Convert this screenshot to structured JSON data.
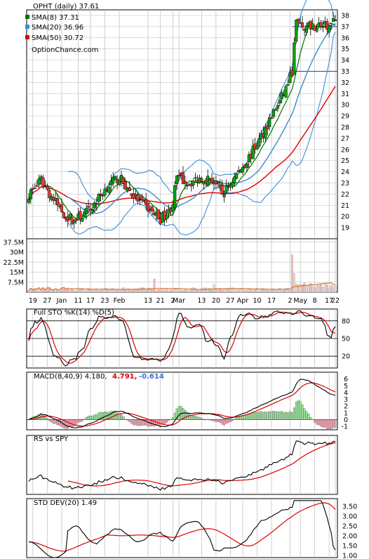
{
  "chart_data": [
    {
      "type": "candlestick",
      "panel": "price",
      "title": "OPHT (daily) 37.61",
      "watermark": "OptionChance.com",
      "legend": [
        {
          "label": "SMA(8) 37.31",
          "color": "#007700"
        },
        {
          "label": "SMA(20) 36.96",
          "color": "#3a8fd6"
        },
        {
          "label": "SMA(50) 30.72",
          "color": "#dd0000"
        }
      ],
      "legend_placement": "top-left",
      "ylim": [
        18,
        38.5
      ],
      "y_ticks": [
        "38",
        "37",
        "36",
        "35",
        "34",
        "33",
        "32",
        "31",
        "30",
        "29",
        "28",
        "27",
        "26",
        "25",
        "24",
        "23",
        "22",
        "21",
        "20",
        "19"
      ],
      "x_labels": [
        "19",
        "27",
        "Jan",
        "11",
        "17",
        "23",
        "Feb",
        "13",
        "21",
        "2",
        "Mar",
        "13",
        "20",
        "27",
        "Apr",
        "10",
        "17",
        "2",
        "May",
        "8",
        "17",
        "22"
      ],
      "horizontal_lines": [
        37,
        33
      ],
      "close_start": 22.0,
      "close_end": 37.61,
      "grid": true
    },
    {
      "type": "bar",
      "panel": "volume",
      "y_ticks": [
        "37.5M",
        "30M",
        "22.5M",
        "15M",
        "7.5M"
      ],
      "ylim": [
        0,
        40
      ],
      "unit": "M"
    },
    {
      "type": "line",
      "panel": "stochastic",
      "label": "Full STO %K(14) %D(5)",
      "ylim": [
        0,
        100
      ],
      "y_ticks": [
        "80",
        "50",
        "20"
      ]
    },
    {
      "type": "line",
      "panel": "macd",
      "label": "MACD(8,40,9) 4.180,",
      "value_red": "4.791,",
      "value_blue": "-0.614",
      "ylim": [
        -1.5,
        7
      ],
      "y_ticks": [
        "6",
        "5",
        "4",
        "3",
        "2",
        "1",
        "0",
        "-1"
      ]
    },
    {
      "type": "line",
      "panel": "relative-strength",
      "label": "RS vs SPY"
    },
    {
      "type": "line",
      "panel": "std-dev",
      "label": "STD DEV(20) 1.49",
      "ylim": [
        0.9,
        3.9
      ],
      "y_ticks": [
        "3.50",
        "3.00",
        "2.50",
        "2.00",
        "1.50",
        "1.00"
      ]
    }
  ],
  "colors": {
    "up": "#00aa00",
    "down": "#ee3333",
    "sma8": "#007700",
    "sma20": "#3a8fd6",
    "sma50": "#dd0000",
    "bb_mid": "#eecc33",
    "vol": "#f4bcbc"
  }
}
